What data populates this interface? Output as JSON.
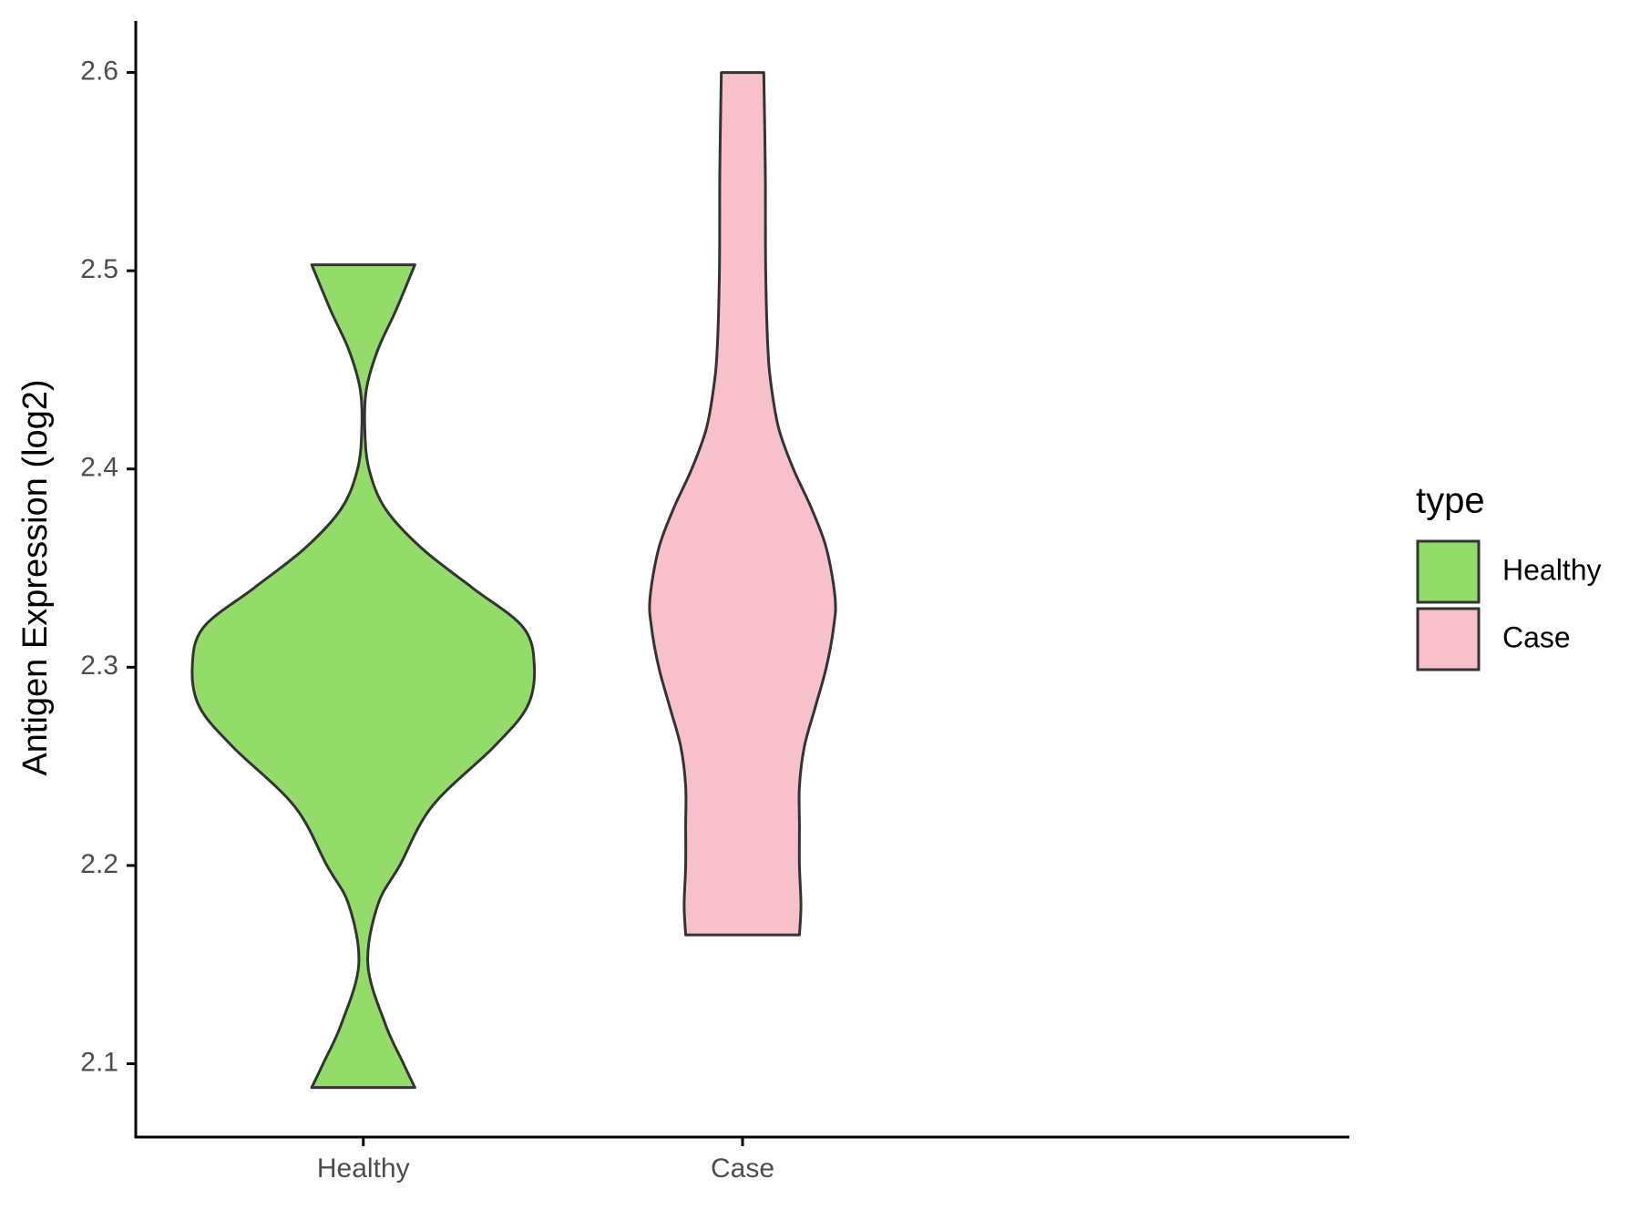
{
  "chart_data": {
    "type": "violin",
    "y_label": "Antigen Expression (log2)",
    "categories": [
      "Healthy",
      "Case"
    ],
    "ylim": [
      2.063,
      2.626
    ],
    "yticks": [
      2.1,
      2.2,
      2.3,
      2.4,
      2.5,
      2.6
    ],
    "legend_title": "type",
    "legend_position": "right",
    "series": [
      {
        "name": "Healthy",
        "color": "#93dc6a",
        "y": [
          2.088,
          2.1,
          2.12,
          2.15,
          2.18,
          2.2,
          2.23,
          2.26,
          2.28,
          2.3,
          2.32,
          2.34,
          2.36,
          2.38,
          2.4,
          2.42,
          2.44,
          2.46,
          2.48,
          2.503
        ],
        "density": [
          0.136,
          0.106,
          0.058,
          0.012,
          0.038,
          0.096,
          0.182,
          0.345,
          0.432,
          0.451,
          0.422,
          0.288,
          0.154,
          0.058,
          0.015,
          0.004,
          0.008,
          0.038,
          0.086,
          0.136
        ]
      },
      {
        "name": "Case",
        "color": "#f7c0cb",
        "y": [
          2.165,
          2.18,
          2.2,
          2.22,
          2.24,
          2.26,
          2.28,
          2.3,
          2.32,
          2.335,
          2.36,
          2.38,
          2.4,
          2.42,
          2.44,
          2.46,
          2.5,
          2.55,
          2.6
        ],
        "density": [
          0.15,
          0.154,
          0.15,
          0.15,
          0.15,
          0.163,
          0.192,
          0.221,
          0.24,
          0.244,
          0.221,
          0.182,
          0.134,
          0.096,
          0.077,
          0.067,
          0.061,
          0.06,
          0.056
        ]
      }
    ]
  }
}
